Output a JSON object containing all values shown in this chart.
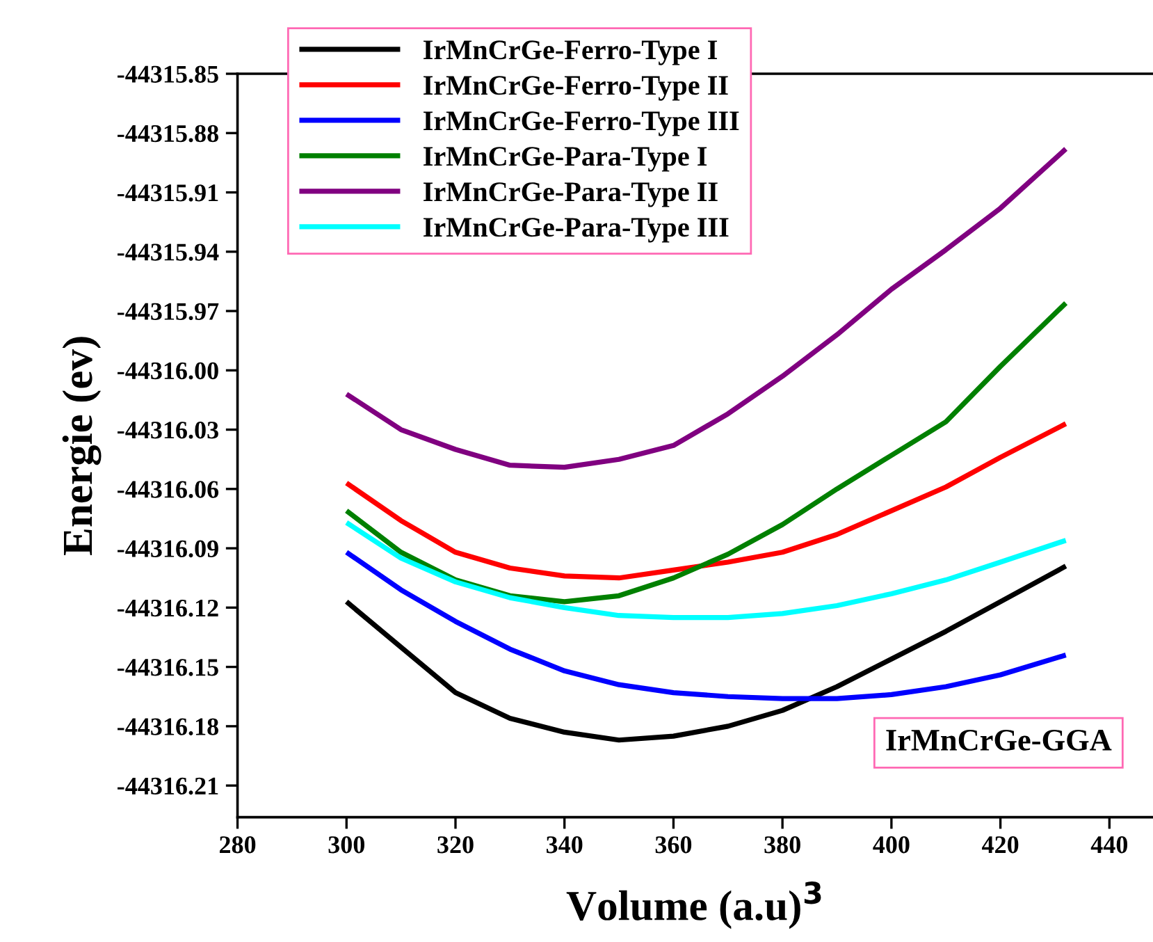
{
  "chart_data": {
    "type": "line",
    "xlabel": "Volume (a.u)$^{3}$",
    "ylabel": "Energie (ev)",
    "x": [
      300,
      310,
      320,
      330,
      340,
      350,
      360,
      370,
      380,
      390,
      400,
      410,
      420,
      432
    ],
    "series": [
      {
        "name": "IrMnCrGe-Ferro-Type I",
        "color": "#000000",
        "values": [
          -44316.117,
          -44316.14,
          -44316.163,
          -44316.176,
          -44316.183,
          -44316.187,
          -44316.185,
          -44316.18,
          -44316.172,
          -44316.16,
          -44316.146,
          -44316.132,
          -44316.117,
          -44316.099
        ]
      },
      {
        "name": "IrMnCrGe-Ferro-Type II",
        "color": "#ff0000",
        "values": [
          -44316.057,
          -44316.076,
          -44316.092,
          -44316.1,
          -44316.104,
          -44316.105,
          -44316.101,
          -44316.097,
          -44316.092,
          -44316.083,
          -44316.071,
          -44316.059,
          -44316.044,
          -44316.027
        ]
      },
      {
        "name": "IrMnCrGe-Ferro-Type III",
        "color": "#0000ff",
        "values": [
          -44316.092,
          -44316.111,
          -44316.127,
          -44316.141,
          -44316.152,
          -44316.159,
          -44316.163,
          -44316.165,
          -44316.166,
          -44316.166,
          -44316.164,
          -44316.16,
          -44316.154,
          -44316.144
        ]
      },
      {
        "name": "IrMnCrGe-Para-Type I",
        "color": "#008000",
        "values": [
          -44316.071,
          -44316.092,
          -44316.106,
          -44316.114,
          -44316.117,
          -44316.114,
          -44316.105,
          -44316.093,
          -44316.078,
          -44316.06,
          -44316.043,
          -44316.026,
          -44315.998,
          -44315.966
        ]
      },
      {
        "name": "IrMnCrGe-Para-Type II",
        "color": "#800080",
        "values": [
          -44316.012,
          -44316.03,
          -44316.04,
          -44316.048,
          -44316.049,
          -44316.045,
          -44316.038,
          -44316.022,
          -44316.003,
          -44315.982,
          -44315.959,
          -44315.939,
          -44315.918,
          -44315.888
        ]
      },
      {
        "name": "IrMnCrGe-Para-Type III",
        "color": "#00ffff",
        "values": [
          -44316.077,
          -44316.095,
          -44316.107,
          -44316.115,
          -44316.12,
          -44316.124,
          -44316.125,
          -44316.125,
          -44316.123,
          -44316.119,
          -44316.113,
          -44316.106,
          -44316.097,
          -44316.086
        ]
      }
    ],
    "xlim": [
      280,
      448
    ],
    "xticks": [
      280,
      300,
      320,
      340,
      360,
      380,
      400,
      420,
      440
    ],
    "ylim": [
      -44316.226,
      -44315.85
    ],
    "yticks": [
      -44315.85,
      -44315.88,
      -44315.91,
      -44315.94,
      -44315.97,
      {
        "value": -44316.0,
        "label": "-44316.00"
      },
      -44316.03,
      -44316.06,
      -44316.09,
      -44316.12,
      -44316.15,
      -44316.18,
      -44316.21
    ],
    "annotations": [
      "IrMnCrGe-GGA"
    ],
    "legend": "top left",
    "grid": false,
    "marker": "none",
    "line_style": "solid"
  }
}
